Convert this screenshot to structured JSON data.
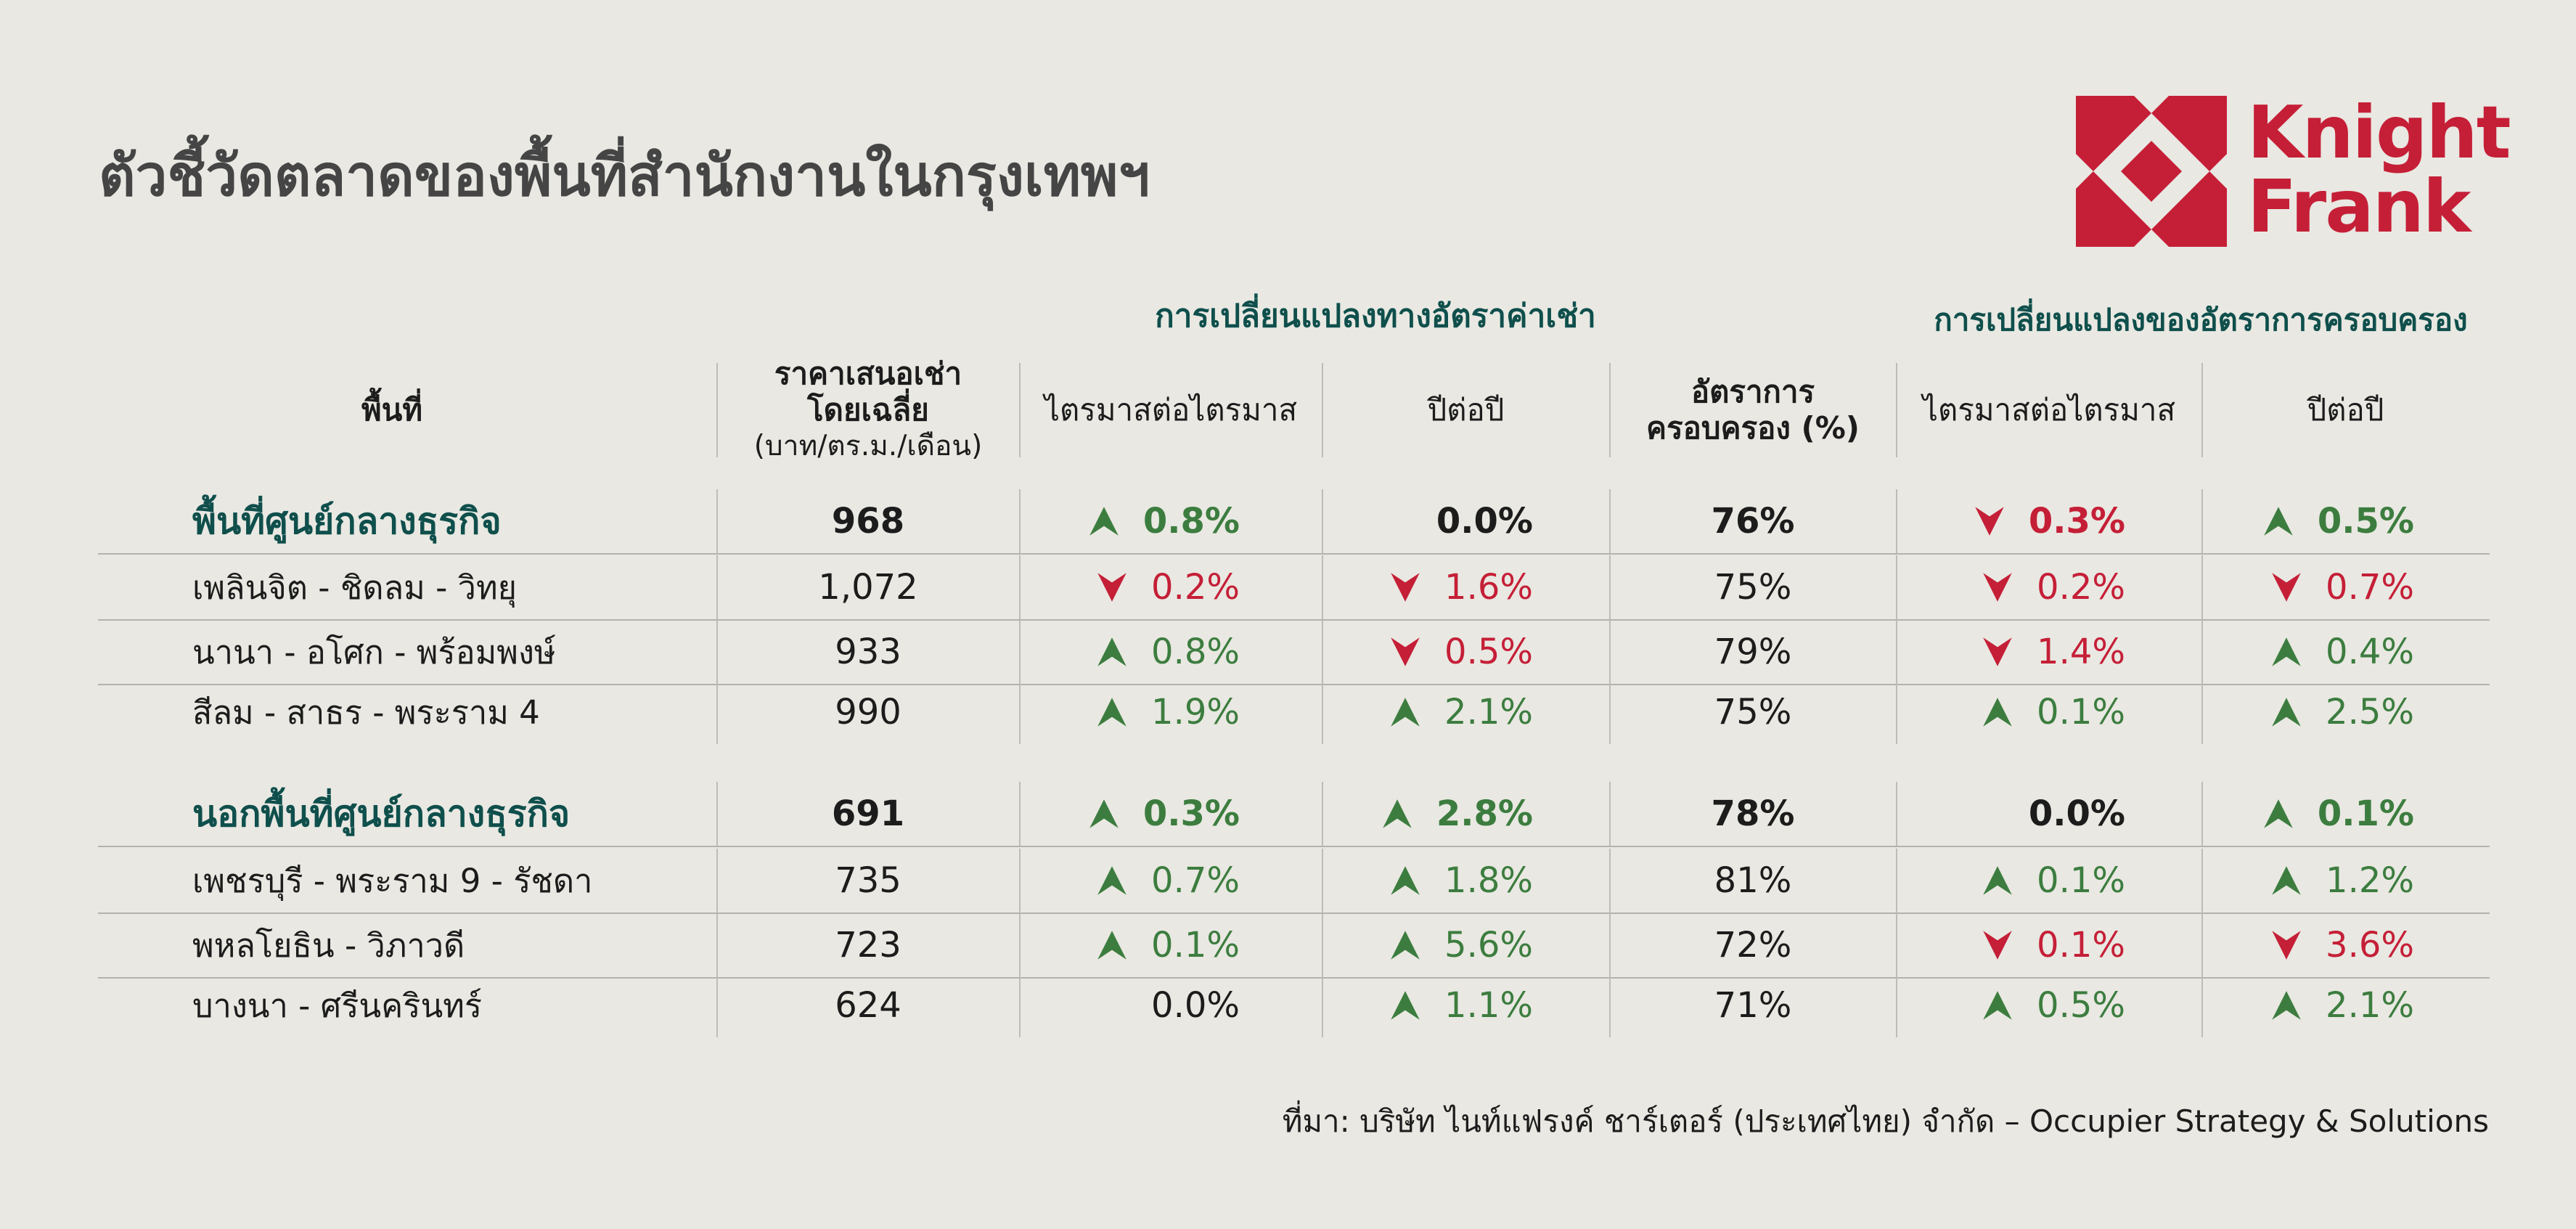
{
  "title": "ตัวชี้วัดตลาดของพื้นที่สำนักงานในกรุงเทพฯ",
  "logo": {
    "line1": "Knight",
    "line2": "Frank",
    "color": "#c51f37"
  },
  "groups": {
    "rent_change": "การเปลี่ยนแปลงทางอัตราค่าเช่า",
    "occupancy_change": "การเปลี่ยนแปลงของอัตราการครอบครอง"
  },
  "headers": {
    "area": "พื้นที่",
    "rent_l1": "ราคาเสนอเช่า",
    "rent_l2": "โดยเฉลี่ย",
    "rent_unit": "(บาท/ตร.ม./เดือน)",
    "rent_qoq": "ไตรมาสต่อไตรมาส",
    "rent_yoy": "ปีต่อปี",
    "occ_l1": "อัตราการ",
    "occ_l2": "ครอบครอง (%)",
    "occ_qoq": "ไตรมาสต่อไตรมาส",
    "occ_yoy": "ปีต่อปี"
  },
  "colors": {
    "up": "#3c7d3f",
    "down": "#c51f37",
    "heading": "#0f4f4c"
  },
  "chart_data": {
    "type": "table",
    "columns": [
      "พื้นที่",
      "ราคาเสนอเช่าโดยเฉลี่ย (บาท/ตร.ม./เดือน)",
      "ไตรมาสต่อไตรมาส",
      "ปีต่อปี",
      "อัตราการครอบครอง (%)",
      "ไตรมาสต่อไตรมาส",
      "ปีต่อปี"
    ],
    "rows": [
      {
        "kind": "agg",
        "name": "พื้นที่ศูนย์กลางธุรกิจ",
        "rent": "968",
        "rent_qoq": {
          "text": "0.8%",
          "dir": "up"
        },
        "rent_yoy": {
          "text": "0.0%",
          "dir": "flat"
        },
        "occ": "76%",
        "occ_qoq": {
          "text": "0.3%",
          "dir": "down"
        },
        "occ_yoy": {
          "text": "0.5%",
          "dir": "up"
        }
      },
      {
        "kind": "sub",
        "name": "เพลินจิต - ชิดลม - วิทยุ",
        "rent": "1,072",
        "rent_qoq": {
          "text": "0.2%",
          "dir": "down"
        },
        "rent_yoy": {
          "text": "1.6%",
          "dir": "down"
        },
        "occ": "75%",
        "occ_qoq": {
          "text": "0.2%",
          "dir": "down"
        },
        "occ_yoy": {
          "text": "0.7%",
          "dir": "down"
        }
      },
      {
        "kind": "sub",
        "name": "นานา - อโศก - พร้อมพงษ์",
        "rent": "933",
        "rent_qoq": {
          "text": "0.8%",
          "dir": "up"
        },
        "rent_yoy": {
          "text": "0.5%",
          "dir": "down"
        },
        "occ": "79%",
        "occ_qoq": {
          "text": "1.4%",
          "dir": "down"
        },
        "occ_yoy": {
          "text": "0.4%",
          "dir": "up"
        }
      },
      {
        "kind": "sub",
        "name": "สีลม - สาธร - พระราม 4",
        "rent": "990",
        "rent_qoq": {
          "text": "1.9%",
          "dir": "up"
        },
        "rent_yoy": {
          "text": "2.1%",
          "dir": "up"
        },
        "occ": "75%",
        "occ_qoq": {
          "text": "0.1%",
          "dir": "up"
        },
        "occ_yoy": {
          "text": "2.5%",
          "dir": "up"
        }
      },
      {
        "kind": "agg",
        "name": "นอกพื้นที่ศูนย์กลางธุรกิจ",
        "rent": "691",
        "rent_qoq": {
          "text": "0.3%",
          "dir": "up"
        },
        "rent_yoy": {
          "text": "2.8%",
          "dir": "up"
        },
        "occ": "78%",
        "occ_qoq": {
          "text": "0.0%",
          "dir": "flat"
        },
        "occ_yoy": {
          "text": "0.1%",
          "dir": "up"
        }
      },
      {
        "kind": "sub",
        "name": "เพชรบุรี - พระราม 9 - รัชดา",
        "rent": "735",
        "rent_qoq": {
          "text": "0.7%",
          "dir": "up"
        },
        "rent_yoy": {
          "text": "1.8%",
          "dir": "up"
        },
        "occ": "81%",
        "occ_qoq": {
          "text": "0.1%",
          "dir": "up"
        },
        "occ_yoy": {
          "text": "1.2%",
          "dir": "up"
        }
      },
      {
        "kind": "sub",
        "name": "พหลโยธิน - วิภาวดี",
        "rent": "723",
        "rent_qoq": {
          "text": "0.1%",
          "dir": "up"
        },
        "rent_yoy": {
          "text": "5.6%",
          "dir": "up"
        },
        "occ": "72%",
        "occ_qoq": {
          "text": "0.1%",
          "dir": "down"
        },
        "occ_yoy": {
          "text": "3.6%",
          "dir": "down"
        }
      },
      {
        "kind": "sub",
        "name": "บางนา - ศรีนครินทร์",
        "rent": "624",
        "rent_qoq": {
          "text": "0.0%",
          "dir": "flat"
        },
        "rent_yoy": {
          "text": "1.1%",
          "dir": "up"
        },
        "occ": "71%",
        "occ_qoq": {
          "text": "0.5%",
          "dir": "up"
        },
        "occ_yoy": {
          "text": "2.1%",
          "dir": "up"
        }
      }
    ]
  },
  "footer": "ที่มา: บริษัท ไนท์แฟรงค์ ชาร์เตอร์ (ประเทศไทย) จำกัด – Occupier Strategy & Solutions"
}
